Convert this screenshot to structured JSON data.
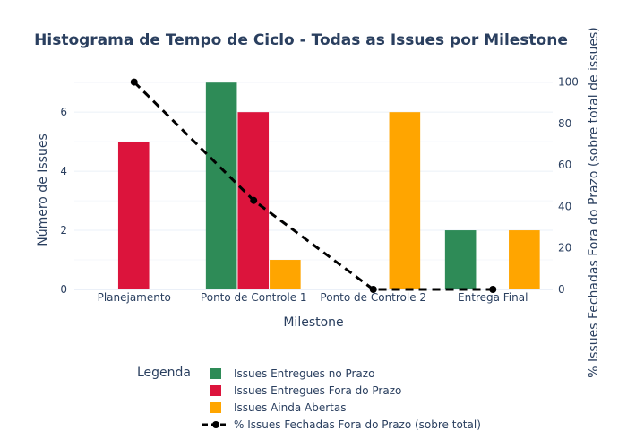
{
  "chart_data": {
    "type": "bar",
    "title": "Histograma de Tempo de Ciclo - Todas as Issues por Milestone",
    "xlabel": "Milestone",
    "ylabel": "Número de Issues",
    "y2label": "% Issues Fechadas Fora do Prazo (sobre total de issues)",
    "categories": [
      "Planejamento",
      "Ponto de Controle 1",
      "Ponto de Controle 2",
      "Entrega Final"
    ],
    "ylim": [
      0,
      7.37
    ],
    "yticks": [
      0,
      2,
      4,
      6
    ],
    "y2lim": [
      0,
      105
    ],
    "y2ticks": [
      0,
      20,
      40,
      60,
      80,
      100
    ],
    "grid": true,
    "legend_title": "Legenda",
    "legend_position": "bottom",
    "series": [
      {
        "name": "Issues Entregues no Prazo",
        "type": "bar",
        "color": "#2e8b57",
        "values": [
          0,
          7,
          0,
          2
        ]
      },
      {
        "name": "Issues Entregues Fora do Prazo",
        "type": "bar",
        "color": "#dc143c",
        "values": [
          5,
          6,
          0,
          0
        ]
      },
      {
        "name": "Issues Ainda Abertas",
        "type": "bar",
        "color": "#ffa500",
        "values": [
          0,
          1,
          6,
          2
        ]
      },
      {
        "name": "% Issues Fechadas Fora do Prazo (sobre total)",
        "type": "line",
        "axis": "y2",
        "color": "#000000",
        "dash": "dash",
        "values": [
          100,
          42.9,
          0,
          0
        ]
      }
    ]
  }
}
